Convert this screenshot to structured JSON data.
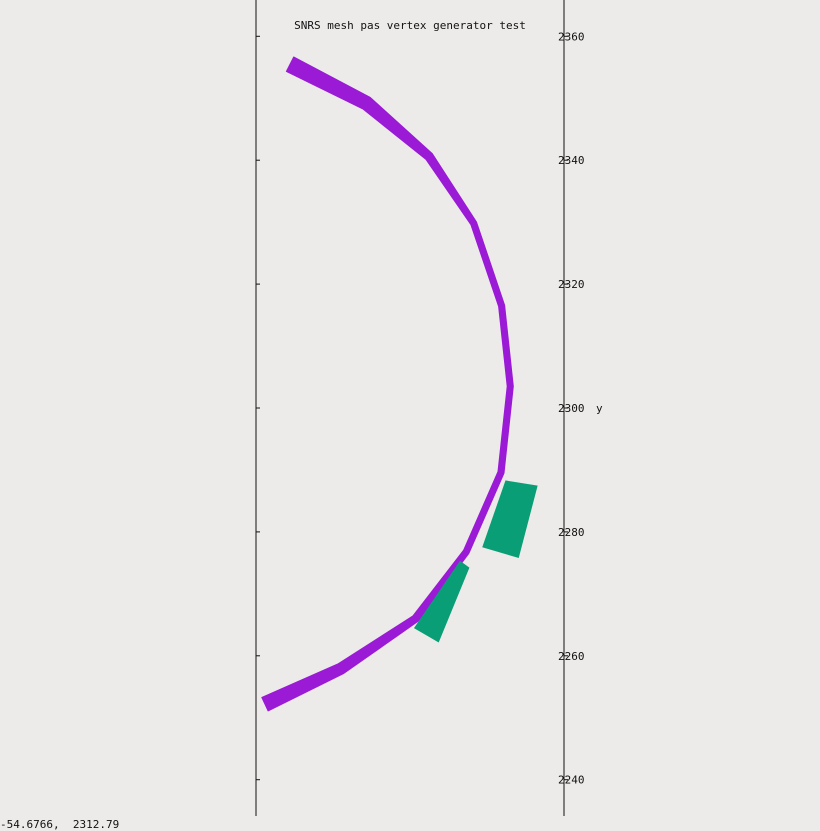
{
  "chart_data": {
    "type": "scatter",
    "title": "SNRS mesh pas vertex generator test",
    "ylabel": "y",
    "ylim": [
      2234,
      2366
    ],
    "yticks": [
      2240,
      2260,
      2280,
      2300,
      2320,
      2340,
      2360
    ],
    "grid": false,
    "series": [
      {
        "color": "#9a1ad6",
        "shape": "polyline-band",
        "points": [
          [
            -53.75,
            2355.5
          ],
          [
            -41.4,
            2349.2
          ],
          [
            -31.3,
            2340.6
          ],
          [
            -24.1,
            2329.8
          ],
          [
            -19.6,
            2316.5
          ],
          [
            -18.2,
            2303.5
          ],
          [
            -19.7,
            2289.6
          ],
          [
            -25.3,
            2276.8
          ],
          [
            -33.5,
            2266.0
          ],
          [
            -45.6,
            2257.9
          ],
          [
            -57.8,
            2252.2
          ]
        ],
        "half_width": [
          1.3,
          1.1,
          0.7,
          0.5,
          0.5,
          0.5,
          0.5,
          0.5,
          0.6,
          0.9,
          1.2
        ]
      },
      {
        "color": "#0a9e76",
        "shape": "quad",
        "corners": [
          [
            -13.9,
            2287.4
          ],
          [
            -18.9,
            2288.2
          ],
          [
            -22.6,
            2277.6
          ],
          [
            -16.9,
            2275.9
          ]
        ]
      },
      {
        "color": "#0a9e76",
        "shape": "quad",
        "corners": [
          [
            -24.9,
            2274.2
          ],
          [
            -26.3,
            2275.2
          ],
          [
            -33.6,
            2264.5
          ],
          [
            -29.8,
            2262.3
          ]
        ]
      }
    ]
  },
  "status": {
    "cursor_readout": "-54.6766,  2312.79"
  },
  "colors": {
    "background": "#edebe9",
    "axis": "#111111"
  }
}
